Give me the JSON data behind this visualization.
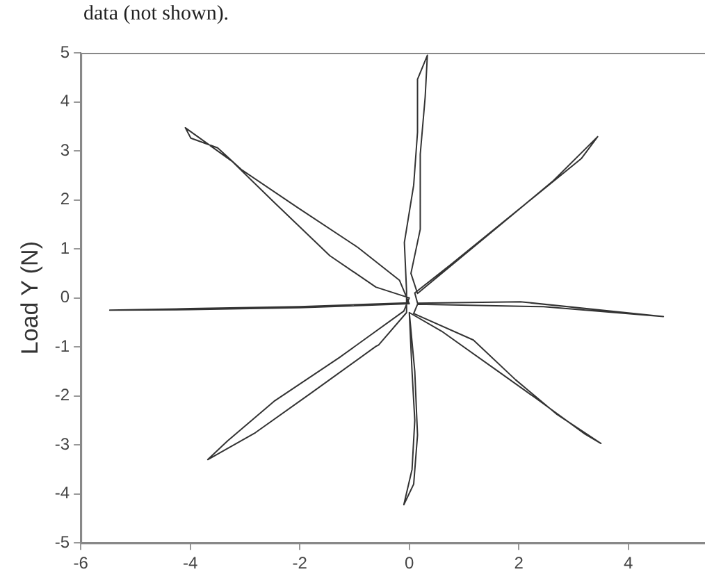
{
  "chart_data": {
    "type": "line",
    "annotations": [
      "data (not shown)."
    ],
    "ylabel": "Load Y (N)",
    "color": "#333333",
    "marker": "none",
    "line_style": "solid",
    "grid": false,
    "xlim": [
      -6,
      5.4
    ],
    "ylim": [
      -5,
      5
    ],
    "xticks": [
      -6,
      -4,
      -2,
      0,
      2,
      4
    ],
    "yticks": [
      -5,
      -4,
      -3,
      -2,
      -1,
      0,
      1,
      2,
      3,
      4,
      5
    ],
    "x": [
      0,
      -2,
      -4,
      -5.47,
      -4,
      -2,
      0,
      -0.18,
      -0.94,
      -2.05,
      -3.07,
      -3.5,
      -3.99,
      -4.09,
      -3.24,
      -2.47,
      -1.45,
      -0.61,
      0,
      -0.1,
      -1.28,
      -2.47,
      -3.32,
      -3.68,
      -2.81,
      -1.79,
      -0.61,
      -0.56,
      -0.05,
      -0.05,
      -0.09,
      0.08,
      0.15,
      0.15,
      0.33,
      0.29,
      0.2,
      0.2,
      0.03,
      0.15,
      1.61,
      2.63,
      3.44,
      3.14,
      0.76,
      0.1,
      0.15,
      2.03,
      4.64,
      2.45,
      0.15,
      0.08,
      1.17,
      1.94,
      2.7,
      3.5,
      3.21,
      2.29,
      1.61,
      0.59,
      0,
      0.05,
      0.1,
      0.05,
      -0.1,
      0.08,
      0.15,
      0.1,
      0
    ],
    "values": [
      -0.1,
      -0.18,
      -0.22,
      -0.25,
      -0.24,
      -0.2,
      -0.12,
      0.36,
      1.03,
      1.85,
      2.62,
      3.06,
      3.26,
      3.47,
      2.79,
      1.95,
      0.86,
      0.22,
      0,
      -0.27,
      -1.22,
      -2.11,
      -2.92,
      -3.3,
      -2.75,
      -1.94,
      -0.99,
      -0.96,
      -0.3,
      0.14,
      1.13,
      2.3,
      3.38,
      4.46,
      4.95,
      4.1,
      2.93,
      1.4,
      0.5,
      0.09,
      1.44,
      2.39,
      3.29,
      2.84,
      0.68,
      0.1,
      -0.11,
      -0.08,
      -0.38,
      -0.18,
      -0.13,
      -0.32,
      -0.86,
      -1.67,
      -2.38,
      -2.97,
      -2.78,
      -2.03,
      -1.49,
      -0.68,
      -0.3,
      -1.5,
      -2.5,
      -3.5,
      -4.22,
      -3.8,
      -2.8,
      -1.5,
      -0.3
    ]
  }
}
